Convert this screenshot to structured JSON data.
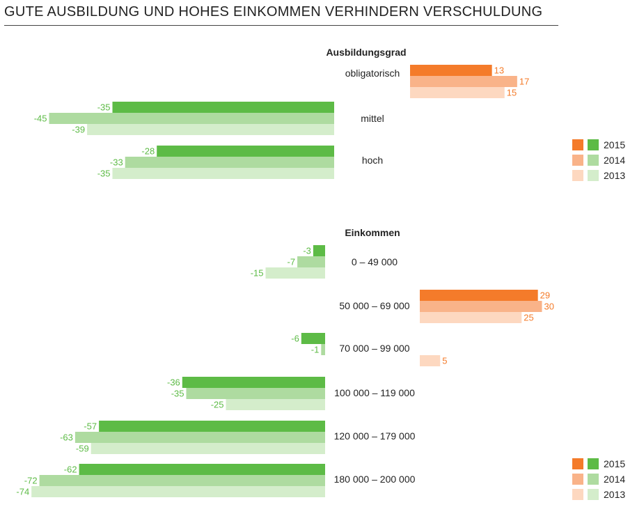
{
  "title": "GUTE AUSBILDUNG UND HOHES EINKOMMEN VERHINDERN VERSCHULDUNG",
  "colors": {
    "pos": [
      "#f47b2a",
      "#f9b389",
      "#fdd8c0"
    ],
    "neg": [
      "#5dbb46",
      "#aedba0",
      "#d4edcb"
    ],
    "neg_label": "#5dbb46",
    "pos_label": "#f47b2a"
  },
  "chart_data": [
    {
      "type": "bar",
      "title": "Ausbildungsgrad",
      "categories": [
        "obligatorisch",
        "mittel",
        "hoch"
      ],
      "series": [
        {
          "name": "2015",
          "values": [
            13,
            -35,
            -28
          ]
        },
        {
          "name": "2014",
          "values": [
            17,
            -45,
            -33
          ]
        },
        {
          "name": "2013",
          "values": [
            15,
            -39,
            -35
          ]
        }
      ],
      "legend": [
        "2015",
        "2014",
        "2013"
      ],
      "legend_position": "right"
    },
    {
      "type": "bar",
      "title": "Einkommen",
      "categories": [
        "0 – 49 000",
        "50 000 – 69 000",
        "70 000 – 99 000",
        "100 000 – 119 000",
        "120 000 – 179 000",
        "180 000 – 200 000"
      ],
      "series": [
        {
          "name": "2015",
          "values": [
            -3,
            29,
            -6,
            -36,
            -57,
            -62
          ]
        },
        {
          "name": "2014",
          "values": [
            -7,
            30,
            -1,
            -35,
            -63,
            -72
          ]
        },
        {
          "name": "2013",
          "values": [
            -15,
            25,
            5,
            -25,
            -59,
            -74
          ]
        }
      ],
      "legend": [
        "2015",
        "2014",
        "2013"
      ],
      "legend_position": "bottom-right"
    }
  ]
}
